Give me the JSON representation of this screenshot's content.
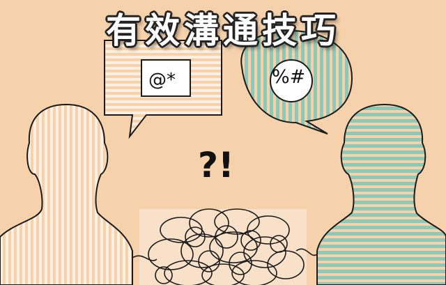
{
  "title": "有效溝通技巧",
  "left_bubble_symbol": "@*",
  "right_bubble_symbol": "%#",
  "confusion_mark": "?!",
  "colors": {
    "background": "#f6d2ac",
    "left_stripes": "#fbe6cf",
    "right_stripes": "#8ec9b8",
    "outline": "#1a1a1a"
  }
}
